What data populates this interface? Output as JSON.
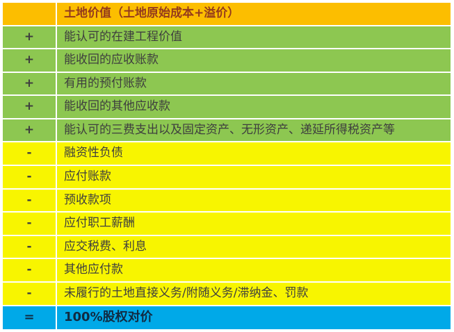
{
  "table": {
    "title": "100% equity consideration calculation",
    "colors": {
      "header_bg": "#FCBE00",
      "asset_bg": "#8DC751",
      "liability_bg": "#F8F500",
      "result_bg": "#00A9E8",
      "header_text": "#943A1C",
      "body_text": "#3E3E3E",
      "result_text": "#112B42",
      "grid": "#FFFFFF"
    },
    "rows": [
      {
        "op": "",
        "label": "土地价值（土地原始成本+溢价）",
        "section": "header"
      },
      {
        "op": "+",
        "label": "能认可的在建工程价值",
        "section": "asset"
      },
      {
        "op": "+",
        "label": "能收回的应收账款",
        "section": "asset"
      },
      {
        "op": "+",
        "label": "有用的预付账款",
        "section": "asset"
      },
      {
        "op": "+",
        "label": "能收回的其他应收款",
        "section": "asset"
      },
      {
        "op": "+",
        "label": "能认可的三费支出以及固定资产、无形资产、递延所得税资产等",
        "section": "asset"
      },
      {
        "op": "-",
        "label": "融资性负债",
        "section": "liability"
      },
      {
        "op": "-",
        "label": "应付账款",
        "section": "liability"
      },
      {
        "op": "-",
        "label": "预收款项",
        "section": "liability"
      },
      {
        "op": "-",
        "label": "应付职工薪酬",
        "section": "liability"
      },
      {
        "op": "-",
        "label": "应交税费、利息",
        "section": "liability"
      },
      {
        "op": "-",
        "label": "其他应付款",
        "section": "liability"
      },
      {
        "op": "-",
        "label": "未履行的土地直接义务/附随义务/滞纳金、罚款",
        "section": "liability"
      },
      {
        "op": "=",
        "label": "100%股权对价",
        "section": "result"
      }
    ]
  }
}
